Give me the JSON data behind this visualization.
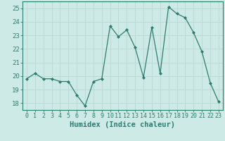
{
  "x": [
    0,
    1,
    2,
    3,
    4,
    5,
    6,
    7,
    8,
    9,
    10,
    11,
    12,
    13,
    14,
    15,
    16,
    17,
    18,
    19,
    20,
    21,
    22,
    23
  ],
  "y": [
    19.8,
    20.2,
    19.8,
    19.8,
    19.6,
    19.6,
    18.6,
    17.8,
    19.6,
    19.8,
    23.7,
    22.9,
    23.4,
    22.1,
    19.9,
    23.6,
    20.2,
    25.1,
    24.6,
    24.3,
    23.2,
    21.8,
    19.5,
    18.1
  ],
  "line_color": "#2d7d6e",
  "marker": "D",
  "marker_size": 2.0,
  "bg_color": "#ceeae6",
  "grid_color": "#b8d8d4",
  "axis_color": "#2d7d6e",
  "xlabel": "Humidex (Indice chaleur)",
  "ylim": [
    17.5,
    25.5
  ],
  "xlim": [
    -0.5,
    23.5
  ],
  "yticks": [
    18,
    19,
    20,
    21,
    22,
    23,
    24,
    25
  ],
  "xticks": [
    0,
    1,
    2,
    3,
    4,
    5,
    6,
    7,
    8,
    9,
    10,
    11,
    12,
    13,
    14,
    15,
    16,
    17,
    18,
    19,
    20,
    21,
    22,
    23
  ],
  "tick_color": "#2d7d6e",
  "xlabel_fontsize": 7.5,
  "xtick_fontsize": 6.0,
  "ytick_fontsize": 6.5
}
